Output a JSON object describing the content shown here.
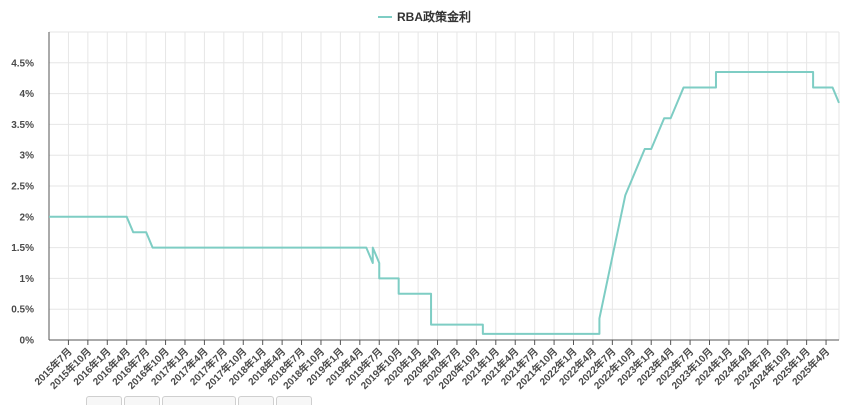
{
  "chart_data": {
    "type": "line",
    "title": "",
    "xlabel": "",
    "ylabel": "",
    "legend": {
      "placement": "top-center"
    },
    "grid": true,
    "ylim": [
      0,
      5
    ],
    "yticks": [
      0,
      0.5,
      1,
      1.5,
      2,
      2.5,
      3,
      3.5,
      4,
      4.5
    ],
    "ytick_labels": [
      "0%",
      "0.5%",
      "1%",
      "1.5%",
      "2%",
      "2.5%",
      "3%",
      "3.5%",
      "4%",
      "4.5%"
    ],
    "xlim": [
      "2015-04",
      "2025-06"
    ],
    "xtick_labels": [
      "2015年7月",
      "2015年10月",
      "2016年1月",
      "2016年4月",
      "2016年7月",
      "2016年10月",
      "2017年1月",
      "2017年4月",
      "2017年7月",
      "2017年10月",
      "2018年1月",
      "2018年4月",
      "2018年7月",
      "2018年10月",
      "2019年1月",
      "2019年4月",
      "2019年7月",
      "2019年10月",
      "2020年1月",
      "2020年4月",
      "2020年7月",
      "2020年10月",
      "2021年1月",
      "2021年4月",
      "2021年7月",
      "2021年10月",
      "2022年1月",
      "2022年4月",
      "2022年7月",
      "2022年10月",
      "2023年1月",
      "2023年4月",
      "2023年7月",
      "2023年10月",
      "2024年1月",
      "2024年4月",
      "2024年7月",
      "2024年10月",
      "2025年1月",
      "2025年4月"
    ],
    "series": [
      {
        "name": "RBA政策金利",
        "color": "#7ecdc4",
        "points": [
          [
            "2015-04",
            2.0
          ],
          [
            "2016-04",
            2.0
          ],
          [
            "2016-05",
            1.75
          ],
          [
            "2016-07",
            1.75
          ],
          [
            "2016-08",
            1.5
          ],
          [
            "2019-05",
            1.5
          ],
          [
            "2019-06",
            1.25
          ],
          [
            "2019-06",
            1.5
          ],
          [
            "2019-07",
            1.25
          ],
          [
            "2019-07",
            1.0
          ],
          [
            "2019-10",
            1.0
          ],
          [
            "2019-10",
            0.75
          ],
          [
            "2020-03",
            0.75
          ],
          [
            "2020-03",
            0.5
          ],
          [
            "2020-03",
            0.25
          ],
          [
            "2020-11",
            0.25
          ],
          [
            "2020-11",
            0.1
          ],
          [
            "2022-05",
            0.1
          ],
          [
            "2022-05",
            0.35
          ],
          [
            "2022-06",
            0.85
          ],
          [
            "2022-07",
            1.35
          ],
          [
            "2022-08",
            1.85
          ],
          [
            "2022-09",
            2.35
          ],
          [
            "2022-10",
            2.6
          ],
          [
            "2022-11",
            2.85
          ],
          [
            "2022-12",
            3.1
          ],
          [
            "2023-01",
            3.1
          ],
          [
            "2023-02",
            3.35
          ],
          [
            "2023-03",
            3.6
          ],
          [
            "2023-04",
            3.6
          ],
          [
            "2023-05",
            3.85
          ],
          [
            "2023-06",
            4.1
          ],
          [
            "2023-11",
            4.1
          ],
          [
            "2023-11",
            4.35
          ],
          [
            "2025-02",
            4.35
          ],
          [
            "2025-02",
            4.1
          ],
          [
            "2025-05",
            4.1
          ],
          [
            "2025-06",
            3.85
          ]
        ]
      }
    ]
  }
}
